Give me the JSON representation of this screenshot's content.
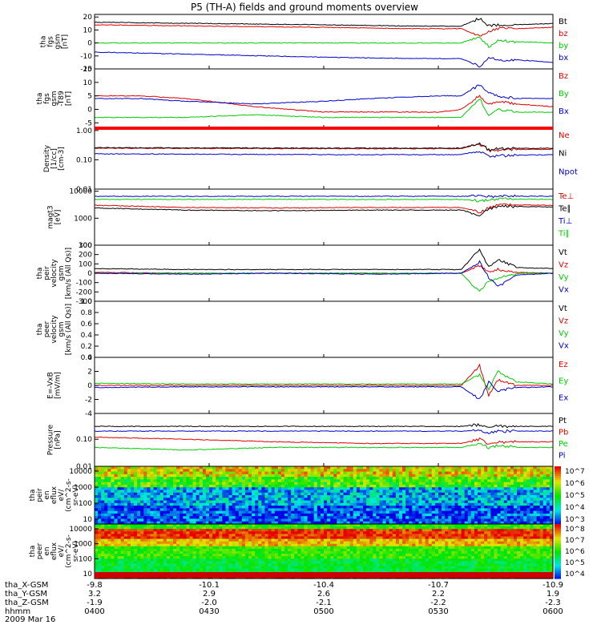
{
  "title": "P5 (TH-A) fields and ground moments overview",
  "date": "2009 Mar 16",
  "colors": {
    "black": "#000000",
    "red": "#e00000",
    "green": "#00cc00",
    "blue": "#0000cc"
  },
  "chart_data": [
    {
      "type": "line",
      "ylabel": [
        "tha",
        "fgs",
        "gsm",
        "[nT]"
      ],
      "yticks": [
        "20",
        "10",
        "0",
        "-10",
        "-20"
      ],
      "ylim": [
        -20,
        22
      ],
      "legend": [
        {
          "label": "Bt",
          "color": "black"
        },
        {
          "label": "bz",
          "color": "red"
        },
        {
          "label": "by",
          "color": "green"
        },
        {
          "label": "bx",
          "color": "blue"
        }
      ],
      "series": [
        {
          "name": "Bt",
          "color": "black",
          "x": [
            0,
            25,
            50,
            70,
            80,
            84,
            86,
            88,
            92,
            100
          ],
          "y": [
            16,
            15,
            14,
            13,
            13,
            19,
            13,
            14,
            14,
            15
          ]
        },
        {
          "name": "bz",
          "color": "red",
          "x": [
            0,
            25,
            50,
            70,
            80,
            84,
            86,
            88,
            92,
            100
          ],
          "y": [
            14,
            13,
            12,
            11,
            11,
            5,
            9,
            11,
            11,
            12
          ]
        },
        {
          "name": "by",
          "color": "green",
          "x": [
            0,
            25,
            50,
            70,
            80,
            84,
            86,
            88,
            92,
            100
          ],
          "y": [
            0,
            0,
            0,
            0,
            0,
            5,
            -3,
            2,
            1,
            0
          ]
        },
        {
          "name": "bx",
          "color": "blue",
          "x": [
            0,
            25,
            50,
            70,
            80,
            84,
            86,
            88,
            92,
            100
          ],
          "y": [
            -7,
            -9,
            -11,
            -12,
            -12,
            -18,
            -11,
            -13,
            -13,
            -15
          ]
        }
      ]
    },
    {
      "type": "line",
      "ylabel": [
        "tha",
        "fgs",
        "gsm",
        "-T89",
        "[nT]"
      ],
      "yticks": [
        "15",
        "10",
        "5",
        "0",
        "-5"
      ],
      "ylim": [
        -7,
        15
      ],
      "legend": [
        {
          "label": "Bz",
          "color": "red"
        },
        {
          "label": "By",
          "color": "green"
        },
        {
          "label": "Bx",
          "color": "blue"
        }
      ],
      "series": [
        {
          "name": "Bz",
          "color": "red",
          "x": [
            0,
            10,
            20,
            35,
            50,
            60,
            75,
            80,
            84,
            86,
            88,
            92,
            100
          ],
          "y": [
            5,
            5,
            4,
            1,
            -1,
            -1,
            -1,
            0,
            5,
            2,
            3,
            2,
            1
          ]
        },
        {
          "name": "By",
          "color": "green",
          "x": [
            0,
            10,
            20,
            35,
            50,
            60,
            75,
            80,
            84,
            86,
            88,
            92,
            100
          ],
          "y": [
            -3,
            -3,
            -3,
            -2,
            -3,
            -3,
            -3,
            -3,
            4,
            -2,
            0,
            -1,
            -1
          ]
        },
        {
          "name": "Bx",
          "color": "blue",
          "x": [
            0,
            10,
            20,
            35,
            50,
            60,
            75,
            80,
            84,
            86,
            88,
            92,
            100
          ],
          "y": [
            4,
            4,
            3,
            2,
            3,
            4,
            5,
            5,
            9,
            6,
            5,
            4,
            4
          ]
        }
      ]
    },
    {
      "type": "line",
      "scale": "log",
      "ylabel": [
        "Density",
        "[1/cc]",
        "[cm-3]"
      ],
      "yticks": [
        "1.00",
        "0.10",
        "0.01"
      ],
      "ylim": [
        0.01,
        1.2
      ],
      "legend": [
        {
          "label": "Ne",
          "color": "red"
        },
        {
          "label": "Ni",
          "color": "black"
        },
        {
          "label": "Npot",
          "color": "blue"
        }
      ],
      "series": [
        {
          "name": "Ne",
          "color": "red",
          "x": [
            0,
            50,
            80,
            84,
            86,
            88,
            100
          ],
          "y": [
            0.25,
            0.24,
            0.24,
            0.35,
            0.2,
            0.22,
            0.23
          ]
        },
        {
          "name": "Ni",
          "color": "black",
          "x": [
            0,
            50,
            80,
            84,
            86,
            88,
            100
          ],
          "y": [
            0.26,
            0.25,
            0.25,
            0.35,
            0.22,
            0.24,
            0.25
          ]
        },
        {
          "name": "Npot",
          "color": "blue",
          "x": [
            0,
            50,
            80,
            84,
            86,
            88,
            100
          ],
          "y": [
            0.16,
            0.15,
            0.15,
            0.2,
            0.13,
            0.14,
            0.15
          ]
        }
      ]
    },
    {
      "type": "line",
      "scale": "log",
      "ylabel": [
        "magt3",
        "[eV]"
      ],
      "yticks": [
        "10000",
        "1000",
        "100"
      ],
      "ylim": [
        100,
        12000
      ],
      "legend": [
        {
          "label": "Te⊥",
          "color": "red"
        },
        {
          "label": "Te∥",
          "color": "black"
        },
        {
          "label": "Ti⊥",
          "color": "blue"
        },
        {
          "label": "Ti∥",
          "color": "green"
        }
      ],
      "series": [
        {
          "name": "Te⊥",
          "color": "red",
          "x": [
            0,
            20,
            40,
            60,
            80,
            84,
            88,
            100
          ],
          "y": [
            3000,
            2500,
            2400,
            2500,
            2500,
            1600,
            3200,
            3000
          ]
        },
        {
          "name": "Te∥",
          "color": "black",
          "x": [
            0,
            20,
            40,
            60,
            80,
            84,
            88,
            100
          ],
          "y": [
            2400,
            2000,
            1900,
            2000,
            2000,
            1300,
            2800,
            2600
          ]
        },
        {
          "name": "Ti⊥",
          "color": "blue",
          "x": [
            0,
            20,
            40,
            60,
            80,
            84,
            88,
            100
          ],
          "y": [
            6500,
            6500,
            6500,
            6500,
            6500,
            6500,
            6500,
            6500
          ]
        },
        {
          "name": "Ti∥",
          "color": "green",
          "x": [
            0,
            20,
            40,
            60,
            80,
            84,
            88,
            100
          ],
          "y": [
            5000,
            5000,
            5000,
            5000,
            5000,
            4500,
            5200,
            5000
          ]
        }
      ]
    },
    {
      "type": "line",
      "ylabel": [
        "tha",
        "peir",
        "velocity",
        "gsm",
        "[km/s (All Qs)]"
      ],
      "yticks": [
        "300",
        "200",
        "100",
        "0",
        "-100",
        "-200",
        "-300"
      ],
      "ylim": [
        -300,
        300
      ],
      "legend": [
        {
          "label": "Vt",
          "color": "black"
        },
        {
          "label": "Vz",
          "color": "red"
        },
        {
          "label": "Vy",
          "color": "green"
        },
        {
          "label": "Vx",
          "color": "blue"
        }
      ],
      "series": [
        {
          "name": "Vt",
          "color": "black",
          "x": [
            0,
            20,
            40,
            60,
            80,
            84,
            86,
            88,
            92,
            100
          ],
          "y": [
            50,
            40,
            40,
            40,
            40,
            250,
            60,
            150,
            60,
            50
          ]
        },
        {
          "name": "Vz",
          "color": "red",
          "x": [
            0,
            20,
            40,
            60,
            80,
            84,
            86,
            88,
            92,
            100
          ],
          "y": [
            10,
            0,
            0,
            0,
            0,
            80,
            20,
            40,
            10,
            0
          ]
        },
        {
          "name": "Vy",
          "color": "green",
          "x": [
            0,
            20,
            40,
            60,
            80,
            84,
            86,
            88,
            92,
            100
          ],
          "y": [
            0,
            0,
            0,
            0,
            0,
            -200,
            -80,
            -50,
            0,
            0
          ]
        },
        {
          "name": "Vx",
          "color": "blue",
          "x": [
            0,
            20,
            40,
            60,
            80,
            84,
            86,
            88,
            92,
            100
          ],
          "y": [
            0,
            -10,
            0,
            -10,
            0,
            120,
            -50,
            -150,
            -20,
            0
          ]
        }
      ]
    },
    {
      "type": "line",
      "ylabel": [
        "tha",
        "peer",
        "velocity",
        "gsm",
        "[km/s (All Qs)]"
      ],
      "yticks": [
        "1.0",
        "0.8",
        "0.6",
        "0.4",
        "0.2",
        "0.0"
      ],
      "ylim": [
        0,
        1
      ],
      "legend": [
        {
          "label": "Vt",
          "color": "black"
        },
        {
          "label": "Vz",
          "color": "red"
        },
        {
          "label": "Vy",
          "color": "green"
        },
        {
          "label": "Vx",
          "color": "blue"
        }
      ],
      "series": []
    },
    {
      "type": "line",
      "ylabel": [
        "E=-VxB",
        "[mV/m]"
      ],
      "yticks": [
        "4",
        "2",
        "0",
        "-2",
        "-4"
      ],
      "ylim": [
        -4,
        4
      ],
      "legend": [
        {
          "label": "Ez",
          "color": "red"
        },
        {
          "label": "Ey",
          "color": "green"
        },
        {
          "label": "Ex",
          "color": "blue"
        }
      ],
      "series": [
        {
          "name": "Ez",
          "color": "red",
          "x": [
            0,
            20,
            40,
            60,
            80,
            84,
            86,
            88,
            92,
            100
          ],
          "y": [
            0,
            0,
            0,
            0,
            0,
            2.8,
            -1.5,
            0.8,
            0,
            0
          ]
        },
        {
          "name": "Ey",
          "color": "green",
          "x": [
            0,
            20,
            40,
            60,
            80,
            84,
            86,
            88,
            92,
            100
          ],
          "y": [
            0.3,
            0.2,
            0.2,
            0.2,
            0.2,
            1.5,
            -0.5,
            2,
            0.5,
            0.2
          ]
        },
        {
          "name": "Ex",
          "color": "blue",
          "x": [
            0,
            20,
            40,
            60,
            80,
            84,
            86,
            88,
            92,
            100
          ],
          "y": [
            -0.3,
            -0.2,
            -0.2,
            -0.2,
            -0.2,
            -2,
            0.5,
            -0.8,
            -0.3,
            -0.2
          ]
        }
      ]
    },
    {
      "type": "line",
      "scale": "log",
      "ylabel": [
        "Pressure",
        "[nPa]"
      ],
      "yticks": [
        "0.10",
        "0.01"
      ],
      "ylim": [
        0.01,
        0.9
      ],
      "legend": [
        {
          "label": "Pt",
          "color": "black"
        },
        {
          "label": "Pb",
          "color": "red"
        },
        {
          "label": "Pe",
          "color": "green"
        },
        {
          "label": "Pi",
          "color": "blue"
        }
      ],
      "series": [
        {
          "name": "Pt",
          "color": "black",
          "x": [
            0,
            20,
            40,
            60,
            80,
            84,
            86,
            88,
            92,
            100
          ],
          "y": [
            0.3,
            0.3,
            0.3,
            0.3,
            0.3,
            0.35,
            0.3,
            0.3,
            0.3,
            0.3
          ]
        },
        {
          "name": "Pb",
          "color": "red",
          "x": [
            0,
            20,
            40,
            60,
            80,
            84,
            86,
            88,
            92,
            100
          ],
          "y": [
            0.12,
            0.1,
            0.08,
            0.07,
            0.07,
            0.1,
            0.06,
            0.08,
            0.08,
            0.08
          ]
        },
        {
          "name": "Pe",
          "color": "green",
          "x": [
            0,
            20,
            40,
            60,
            80,
            84,
            86,
            88,
            92,
            100
          ],
          "y": [
            0.05,
            0.04,
            0.05,
            0.05,
            0.05,
            0.07,
            0.05,
            0.06,
            0.05,
            0.05
          ]
        },
        {
          "name": "Pi",
          "color": "blue",
          "x": [
            0,
            20,
            40,
            60,
            80,
            84,
            86,
            88,
            92,
            100
          ],
          "y": [
            0.2,
            0.2,
            0.2,
            0.2,
            0.2,
            0.22,
            0.18,
            0.2,
            0.2,
            0.2
          ]
        }
      ]
    },
    {
      "type": "heatmap",
      "scale": "log",
      "ylabel": [
        "tha",
        "peir",
        "en",
        "eflux",
        "eV/",
        "(cm^2-s-",
        "sr-eV)"
      ],
      "yticks": [
        "10000",
        "1000",
        "100",
        "10"
      ],
      "cbar": [
        "10^7",
        "10^6",
        "10^5",
        "10^4",
        "10^3"
      ]
    },
    {
      "type": "heatmap",
      "scale": "log",
      "ylabel": [
        "tha",
        "peer",
        "en",
        "eflux",
        "eV/",
        "(cm^2-s-",
        "sr-eV)"
      ],
      "yticks": [
        "10000",
        "1000",
        "100",
        "10"
      ],
      "cbar": [
        "10^8",
        "10^7",
        "10^6",
        "10^5",
        "10^4"
      ]
    }
  ],
  "xaxis": {
    "rows": [
      {
        "label": "tha_X-GSM",
        "values": [
          "-9.8",
          "-10.1",
          "-10.4",
          "-10.7",
          "-10.9"
        ]
      },
      {
        "label": "tha_Y-GSM",
        "values": [
          "3.2",
          "2.9",
          "2.6",
          "2.2",
          "1.9"
        ]
      },
      {
        "label": "tha_Z-GSM",
        "values": [
          "-1.9",
          "-2.0",
          "-2.1",
          "-2.2",
          "-2.3"
        ]
      },
      {
        "label": "hhmm",
        "values": [
          "0400",
          "0430",
          "0500",
          "0530",
          "0600"
        ]
      }
    ]
  }
}
